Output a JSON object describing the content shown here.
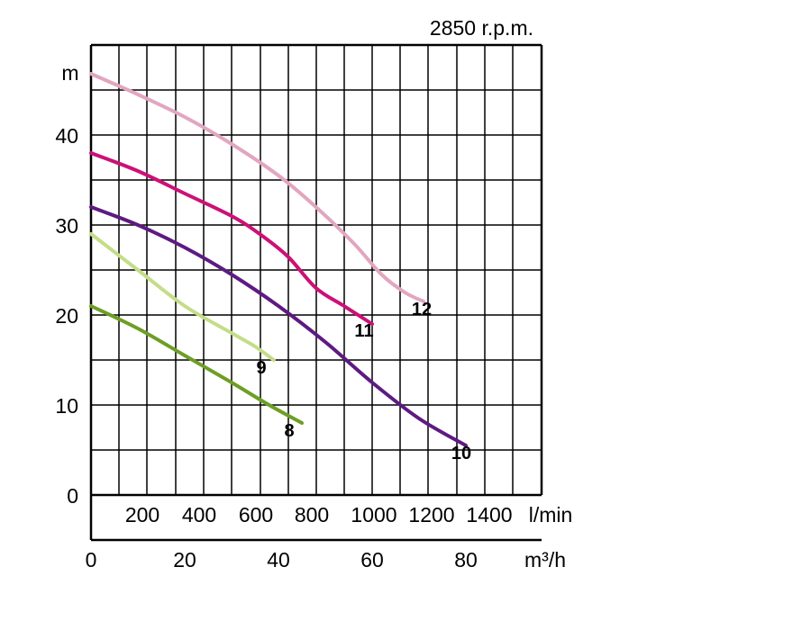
{
  "chart_data": {
    "type": "line",
    "title": "2850 r.p.m.",
    "ylabel": "m",
    "xlabel_lmin": "l/min",
    "xlabel_m3h": "m³/h",
    "ylim": [
      0,
      47
    ],
    "xlim": [
      0,
      96
    ],
    "y_ticks": [
      "0",
      "10",
      "20",
      "30",
      "40"
    ],
    "x_ticks_lmin": [
      "200",
      "400",
      "600",
      "800",
      "1000",
      "1200",
      "1400"
    ],
    "x_ticks_m3h": [
      "0",
      "20",
      "40",
      "60",
      "80"
    ],
    "grid": true,
    "series": [
      {
        "name": "12",
        "color": "#e2a6c0",
        "x": [
          0,
          10,
          20,
          30,
          40,
          48,
          56,
          62,
          67,
          71
        ],
        "y": [
          46.8,
          44.5,
          42,
          39,
          35.5,
          32,
          28,
          24.5,
          22.5,
          21.5
        ]
      },
      {
        "name": "11",
        "color": "#cc1177",
        "x": [
          0,
          10,
          20,
          30,
          36,
          42,
          48,
          54,
          60
        ],
        "y": [
          38,
          36,
          33.5,
          31,
          29,
          26.5,
          23,
          21,
          19
        ]
      },
      {
        "name": "10",
        "color": "#5e1a82",
        "x": [
          0,
          10,
          20,
          30,
          40,
          50,
          60,
          70,
          80
        ],
        "y": [
          32,
          30,
          27.5,
          24.5,
          21,
          17,
          12.5,
          8.5,
          5.5
        ]
      },
      {
        "name": "9",
        "color": "#c4dd88",
        "x": [
          0,
          10,
          20,
          30,
          35,
          39
        ],
        "y": [
          29,
          25,
          21,
          18,
          16.5,
          15
        ]
      },
      {
        "name": "8",
        "color": "#6e9e25",
        "x": [
          0,
          10,
          20,
          30,
          38,
          45
        ],
        "y": [
          21,
          18.5,
          15.5,
          12.5,
          10,
          8
        ]
      }
    ]
  }
}
